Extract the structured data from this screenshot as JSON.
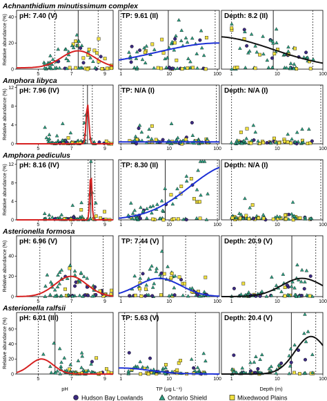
{
  "figure": {
    "y_axis_label": "Relative abundance (%)",
    "x_axis_labels": [
      "pH",
      "TP (µg L⁻¹)",
      "Depth (m)"
    ],
    "legend": [
      {
        "label": "Hudson Bay Lowlands",
        "shape": "circle",
        "color": "#3b2a80"
      },
      {
        "label": "Ontario Shield",
        "shape": "triangle",
        "color": "#2e9e80"
      },
      {
        "label": "Mixedwood Plains",
        "shape": "square",
        "color": "#f0e040"
      }
    ]
  },
  "chart_data": {
    "type": "scatter",
    "gradients": [
      {
        "name": "pH",
        "scale": "linear",
        "ticks": [
          5,
          7,
          9
        ],
        "xlim": [
          3.7,
          9.5
        ],
        "curve_color": "#d62020"
      },
      {
        "name": "TP",
        "scale": "log",
        "ticks": [
          1,
          10,
          100
        ],
        "xlim": [
          0.9,
          110
        ],
        "curve_color": "#1c2fd6"
      },
      {
        "name": "Depth",
        "scale": "log",
        "ticks": [
          1,
          10,
          100
        ],
        "xlim": [
          0.6,
          100
        ],
        "curve_color": "#111111"
      }
    ],
    "rows": [
      {
        "taxon": "Achnanthidium minutissimum complex",
        "ylim": [
          0,
          45
        ],
        "yticks": [
          0,
          20,
          40
        ],
        "panels": [
          {
            "stat_label": "pH: 7.40 (V)",
            "optimum": 7.4,
            "tolerance": [
              6.0,
              8.6
            ],
            "curve": {
              "peak": 14,
              "center": 7.4,
              "width": 1.0,
              "base": 1
            }
          },
          {
            "stat_label": "TP: 9.61 (II)",
            "optimum": 9.61,
            "tolerance": [
              1.0,
              90
            ],
            "curve": {
              "peak": 20,
              "center": 110,
              "width": 1.3,
              "base": 2
            }
          },
          {
            "stat_label": "Depth: 8.2 (II)",
            "optimum": 8.2,
            "tolerance": [
              1.0,
              60
            ],
            "curve": {
              "peak": 25,
              "center": 0.4,
              "width": 1.3,
              "base": 0
            }
          }
        ]
      },
      {
        "taxon": "Amphora libyca",
        "ylim": [
          0,
          12.5
        ],
        "yticks": [
          0,
          4,
          8,
          12
        ],
        "panels": [
          {
            "stat_label": "pH: 7.96 (IV)",
            "optimum": 7.96,
            "tolerance": [
              7.7,
              8.25
            ],
            "curve": {
              "peak": 8.5,
              "center": 7.96,
              "width": 0.08,
              "base": 0
            }
          },
          {
            "stat_label": "TP: N/A (I)",
            "optimum": null,
            "tolerance": [
              1.0,
              95
            ],
            "curve": {
              "peak": 0.4,
              "center": 10,
              "width": 5,
              "base": 0.4
            }
          },
          {
            "stat_label": "Depth: N/A (I)",
            "optimum": null,
            "tolerance": [
              1.0,
              90
            ],
            "curve": null
          }
        ]
      },
      {
        "taxon": "Amphora pediculus",
        "ylim": [
          0,
          13
        ],
        "yticks": [
          0,
          4,
          8,
          12
        ],
        "panels": [
          {
            "stat_label": "pH: 8.16 (IV)",
            "optimum": 8.16,
            "tolerance": [
              8.0,
              8.4
            ],
            "curve": {
              "peak": 10.5,
              "center": 8.16,
              "width": 0.06,
              "base": 0
            }
          },
          {
            "stat_label": "TP: 8.30 (II)",
            "optimum": 8.3,
            "tolerance": [
              1.0,
              100
            ],
            "curve": {
              "peak": 12,
              "center": 220,
              "width": 0.9,
              "base": 0
            }
          },
          {
            "stat_label": "Depth: N/A (I)",
            "optimum": null,
            "tolerance": [
              1.0,
              90
            ],
            "curve": null
          }
        ]
      },
      {
        "taxon": "Asterionella formosa",
        "ylim": [
          0,
          60
        ],
        "yticks": [
          0,
          20,
          40
        ],
        "panels": [
          {
            "stat_label": "pH: 6.96 (V)",
            "optimum": 6.96,
            "tolerance": [
              5.1,
              8.9
            ],
            "curve": {
              "peak": 20,
              "center": 6.96,
              "width": 0.95,
              "base": 0
            }
          },
          {
            "stat_label": "TP: 7.44 (V)",
            "optimum": 7.44,
            "tolerance": [
              2.5,
              22
            ],
            "curve": {
              "peak": 18,
              "center": 6.2,
              "width": 0.45,
              "base": 0
            }
          },
          {
            "stat_label": "Depth: 20.9 (V)",
            "optimum": 20.9,
            "tolerance": [
              3.4,
              70
            ],
            "curve": {
              "peak": 18,
              "center": 35,
              "width": 0.45,
              "base": 0
            }
          }
        ]
      },
      {
        "taxon": "Asterionella ralfsii",
        "ylim": [
          0,
          82
        ],
        "yticks": [
          0,
          20,
          40,
          60
        ],
        "panels": [
          {
            "stat_label": "pH: 6.01 (III)",
            "optimum": 6.01,
            "tolerance": [
              5.0,
              7.0
            ],
            "curve": {
              "peak": 20,
              "center": 5.2,
              "width": 0.7,
              "base": 0
            }
          },
          {
            "stat_label": "TP: 5.63 (V)",
            "optimum": 5.63,
            "tolerance": [
              1.2,
              35
            ],
            "curve": {
              "peak": 8,
              "center": 1.0,
              "width": 0.6,
              "base": 0
            }
          },
          {
            "stat_label": "Depth: 20.4 (V)",
            "optimum": 20.4,
            "tolerance": [
              2.5,
              70
            ],
            "curve": {
              "peak": 50,
              "center": 55,
              "width": 0.35,
              "base": 0
            }
          }
        ]
      }
    ]
  }
}
